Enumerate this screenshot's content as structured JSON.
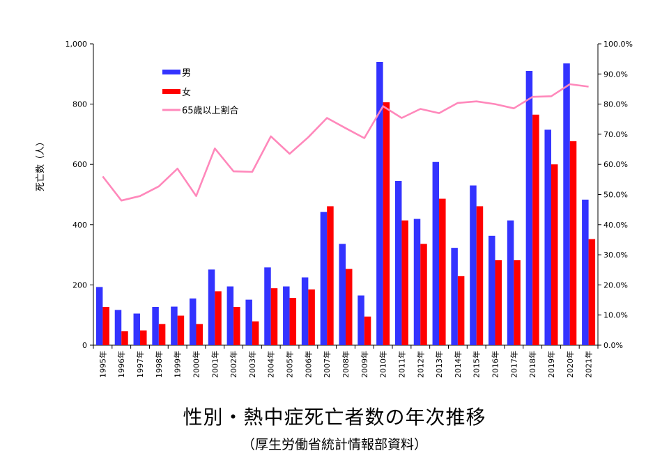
{
  "chart_data": {
    "type": "bar",
    "title": "性別・熱中症死亡者数の年次推移",
    "subtitle": "（厚生労働省統計情報部資料）",
    "ylabel": "死亡数（人）",
    "ylim": [
      0,
      1000
    ],
    "y_ticks": [
      "0",
      "200",
      "400",
      "600",
      "800",
      "1,000"
    ],
    "y2lim": [
      0,
      100
    ],
    "y2_ticks": [
      "0.0%",
      "10.0%",
      "20.0%",
      "30.0%",
      "40.0%",
      "50.0%",
      "60.0%",
      "70.0%",
      "80.0%",
      "90.0%",
      "100.0%"
    ],
    "categories": [
      "1995年",
      "1996年",
      "1997年",
      "1998年",
      "1999年",
      "2000年",
      "2001年",
      "2002年",
      "2003年",
      "2004年",
      "2005年",
      "2006年",
      "2007年",
      "2008年",
      "2009年",
      "2010年",
      "2011年",
      "2012年",
      "2013年",
      "2014年",
      "2015年",
      "2016年",
      "2017年",
      "2018年",
      "2019年",
      "2020年",
      "2021年"
    ],
    "series": [
      {
        "name": "男",
        "type": "bar",
        "color": "#3333ff",
        "values": [
          193,
          117,
          105,
          127,
          128,
          155,
          251,
          195,
          151,
          258,
          195,
          225,
          442,
          336,
          165,
          940,
          545,
          419,
          608,
          323,
          530,
          363,
          414,
          910,
          715,
          935,
          483
        ]
      },
      {
        "name": "女",
        "type": "bar",
        "color": "#ff0000",
        "values": [
          127,
          46,
          49,
          70,
          98,
          70,
          179,
          127,
          79,
          189,
          157,
          185,
          461,
          253,
          95,
          806,
          414,
          336,
          486,
          229,
          461,
          282,
          282,
          765,
          600,
          677,
          352
        ]
      },
      {
        "name": "65歳以上割合",
        "type": "line",
        "axis": "right",
        "color": "#ff88bb",
        "values": [
          56.0,
          48.0,
          49.5,
          52.7,
          58.6,
          49.5,
          65.3,
          57.7,
          57.5,
          69.3,
          63.5,
          69.0,
          75.4,
          72.0,
          68.7,
          79.3,
          75.4,
          78.4,
          77.0,
          80.4,
          80.9,
          80.0,
          78.6,
          82.4,
          82.6,
          86.6,
          85.8
        ]
      }
    ],
    "legend_position": "top-left",
    "grid": false
  }
}
